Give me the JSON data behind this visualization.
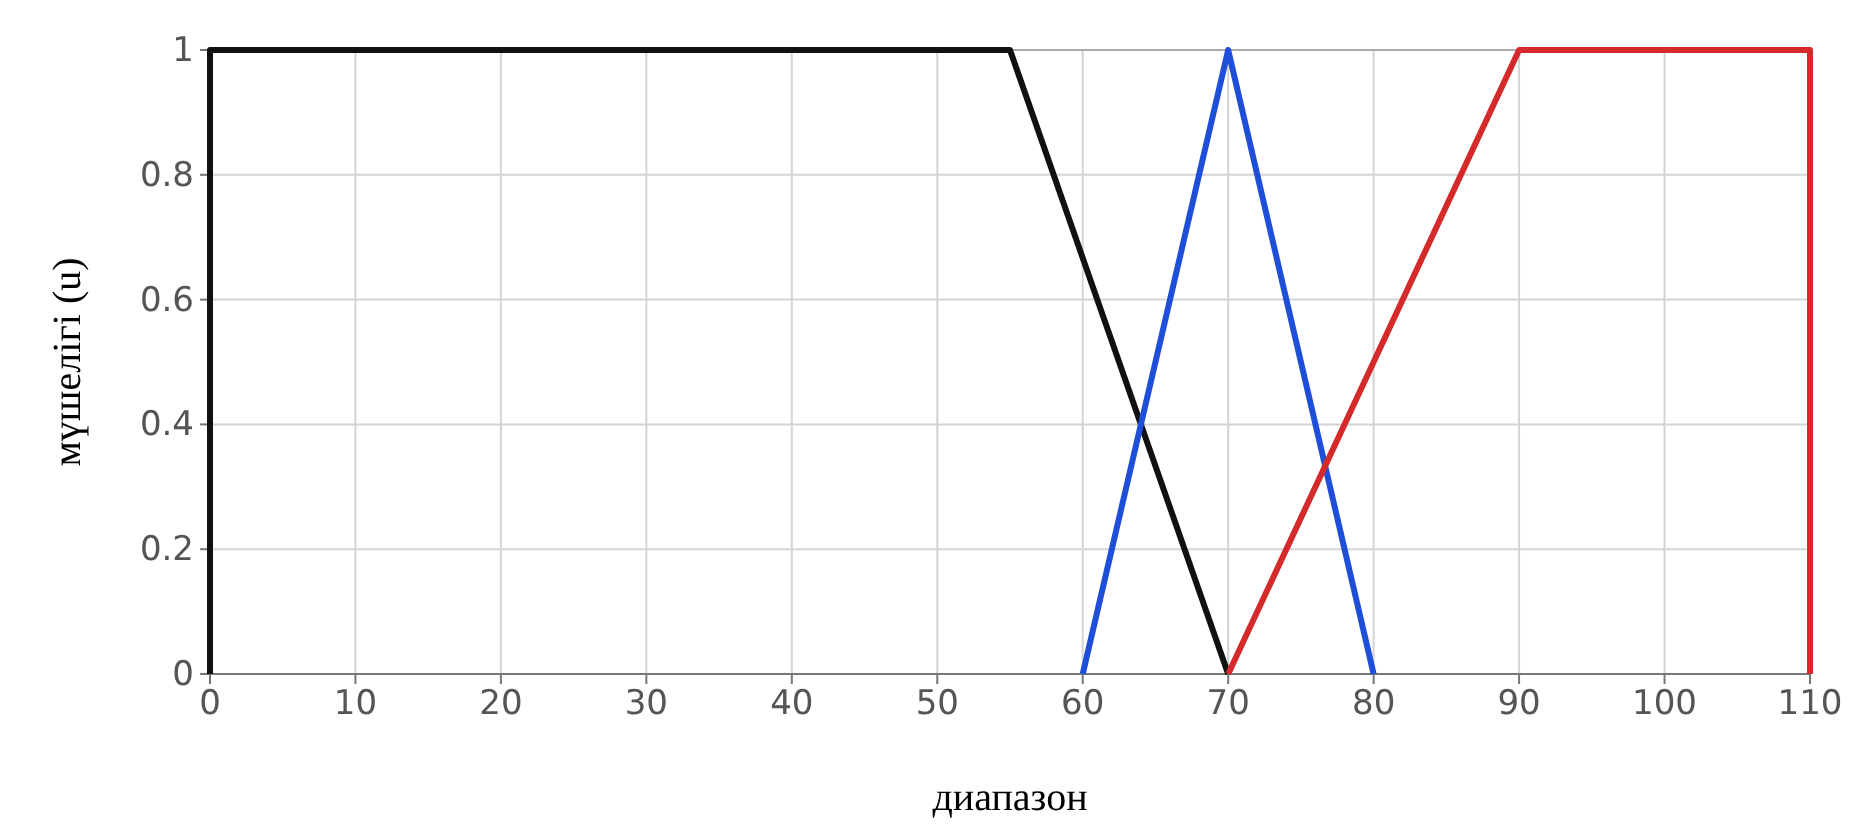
{
  "chart_data": {
    "type": "line",
    "xlabel": "диапазон",
    "ylabel": "мүшелігі (u)",
    "xlim": [
      0,
      110
    ],
    "ylim": [
      0,
      1
    ],
    "xticks": [
      0,
      10,
      20,
      30,
      40,
      50,
      60,
      70,
      80,
      90,
      100,
      110
    ],
    "yticks": [
      0,
      {
        "value": 0.2,
        "label": "0.2"
      },
      {
        "value": 0.4,
        "label": "0.4"
      },
      {
        "value": 0.6,
        "label": "0.6"
      },
      {
        "value": 0.8,
        "label": "0.8"
      },
      1
    ],
    "grid": true,
    "line_style": "solid",
    "series": [
      {
        "color": "#111111",
        "x": [
          0,
          0,
          55,
          70
        ],
        "values": [
          0,
          1,
          1,
          0
        ]
      },
      {
        "color": "#1f4fd8",
        "x": [
          60,
          70,
          80
        ],
        "values": [
          0,
          1,
          0
        ]
      },
      {
        "color": "#d42a2a",
        "x": [
          70,
          90,
          110,
          110
        ],
        "values": [
          0,
          1,
          1,
          0
        ]
      }
    ]
  }
}
